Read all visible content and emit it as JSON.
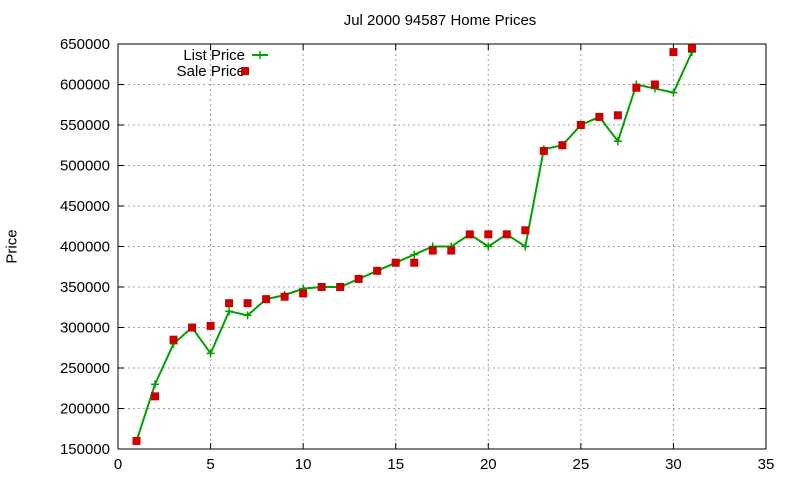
{
  "chart_data": {
    "type": "line",
    "title": "Jul 2000 94587 Home Prices",
    "xlabel": "",
    "ylabel": "Price",
    "xlim": [
      0,
      35
    ],
    "ylim": [
      150000,
      650000
    ],
    "xticks": [
      0,
      5,
      10,
      15,
      20,
      25,
      30,
      35
    ],
    "yticks": [
      150000,
      200000,
      250000,
      300000,
      350000,
      400000,
      450000,
      500000,
      550000,
      600000,
      650000
    ],
    "grid": true,
    "legend_position": "top-left",
    "x": [
      1,
      2,
      3,
      4,
      5,
      6,
      7,
      8,
      9,
      10,
      11,
      12,
      13,
      14,
      15,
      16,
      17,
      18,
      19,
      20,
      21,
      22,
      23,
      24,
      25,
      26,
      27,
      28,
      29,
      30,
      31
    ],
    "series": [
      {
        "name": "List Price",
        "style": "line-with-plus",
        "color": "#00a000",
        "values": [
          160000,
          230000,
          280000,
          300000,
          268000,
          320000,
          315000,
          335000,
          340000,
          348000,
          350000,
          350000,
          360000,
          370000,
          380000,
          390000,
          400000,
          400000,
          415000,
          400000,
          415000,
          400000,
          520000,
          525000,
          550000,
          560000,
          530000,
          600000,
          595000,
          590000,
          640000
        ]
      },
      {
        "name": "Sale Price",
        "style": "square-markers",
        "color": "#cc0000",
        "values": [
          160000,
          215000,
          285000,
          300000,
          302000,
          330000,
          330000,
          335000,
          338000,
          342000,
          350000,
          350000,
          360000,
          370000,
          380000,
          380000,
          395000,
          395000,
          415000,
          415000,
          415000,
          420000,
          518000,
          525000,
          550000,
          560000,
          562000,
          596000,
          600000,
          640000,
          645000
        ]
      }
    ]
  }
}
